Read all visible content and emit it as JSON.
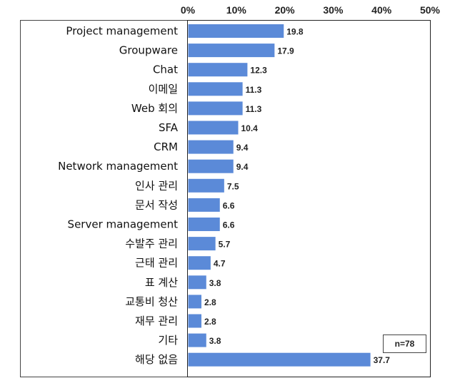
{
  "chart_data": {
    "type": "bar",
    "orientation": "horizontal",
    "categories": [
      "Project management",
      "Groupware",
      "Chat",
      "이메일",
      "Web 회의",
      "SFA",
      "CRM",
      "Network management",
      "인사 관리",
      "문서 작성",
      "Server management",
      "수발주 관리",
      "근태 관리",
      "표 계산",
      "교통비 청산",
      "재무 관리",
      "기타",
      "해당 없음"
    ],
    "values": [
      19.8,
      17.9,
      12.3,
      11.3,
      11.3,
      10.4,
      9.4,
      9.4,
      7.5,
      6.6,
      6.6,
      5.7,
      4.7,
      3.8,
      2.8,
      2.8,
      3.8,
      37.7
    ],
    "value_labels": [
      "19.8",
      "17.9",
      "12.3",
      "11.3",
      "11.3",
      "10.4",
      "9.4",
      "9.4",
      "7.5",
      "6.6",
      "6.6",
      "5.7",
      "4.7",
      "3.8",
      "2.8",
      "2.8",
      "3.8",
      "37.7"
    ],
    "xlim": [
      0,
      50
    ],
    "x_ticks": [
      "0%",
      "10%",
      "20%",
      "30%",
      "40%",
      "50%"
    ],
    "x_axis_position": "top",
    "grid": false,
    "bar_color": "#5b8ad8",
    "annotation": "n=78"
  }
}
